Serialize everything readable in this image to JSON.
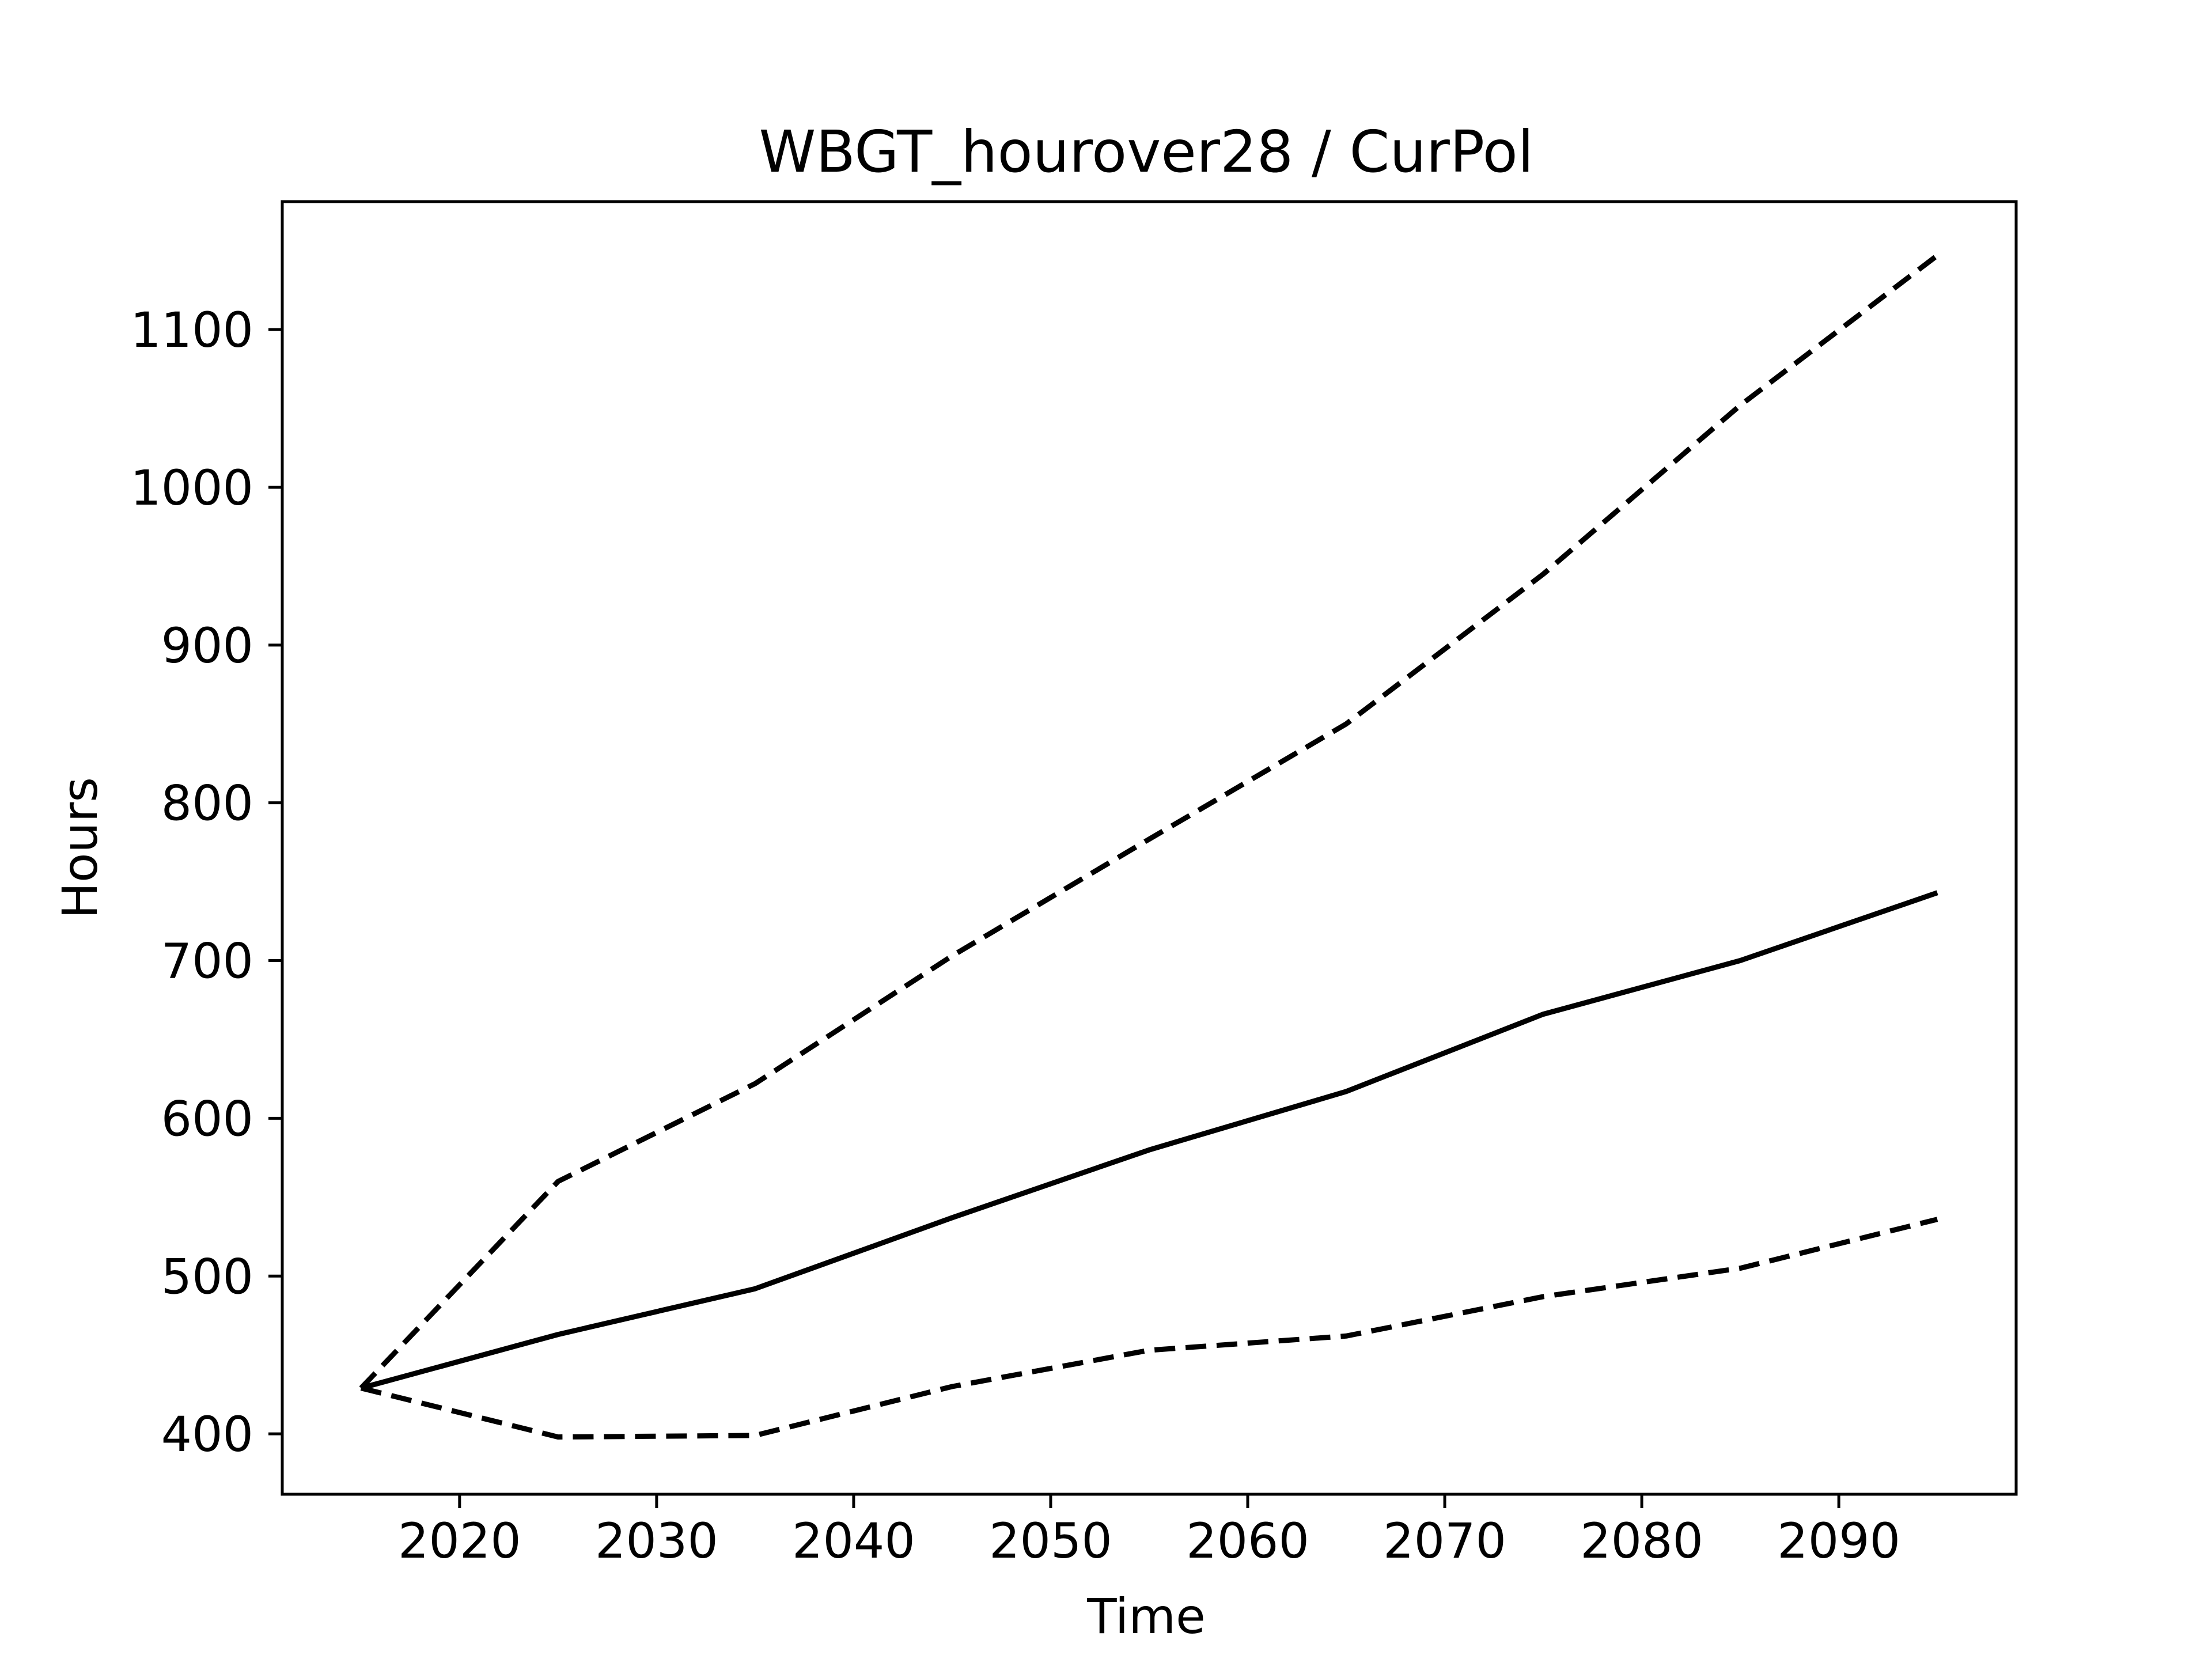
{
  "chart_data": {
    "type": "line",
    "title": "WBGT_hourover28 / CurPol",
    "xlabel": "Time",
    "ylabel": "Hours",
    "xlim": [
      2011,
      2099
    ],
    "ylim": [
      361.7,
      1181.1
    ],
    "xticks": [
      2020,
      2030,
      2040,
      2050,
      2060,
      2070,
      2080,
      2090
    ],
    "yticks": [
      400,
      500,
      600,
      700,
      800,
      900,
      1000,
      1100
    ],
    "grid": false,
    "legend": "none",
    "color": "#000000",
    "x": [
      2015,
      2025,
      2035,
      2045,
      2055,
      2065,
      2075,
      2085,
      2095
    ],
    "series": [
      {
        "style": "solid",
        "values": [
          429,
          463,
          492,
          537,
          580,
          617,
          666,
          700,
          743
        ]
      },
      {
        "style": "dashed",
        "values": [
          429,
          560,
          622,
          703,
          777,
          850,
          945,
          1052,
          1147
        ]
      },
      {
        "style": "dashed",
        "values": [
          429,
          398,
          399,
          430,
          453,
          462,
          487,
          505,
          536
        ]
      }
    ]
  }
}
